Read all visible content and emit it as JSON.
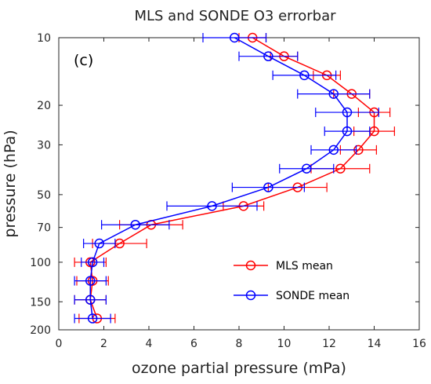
{
  "chart_data": {
    "type": "line",
    "title": "MLS and SONDE O3 errorbar",
    "panel_label": "(c)",
    "xlabel": "ozone partial pressure (mPa)",
    "ylabel": "pressure (hPa)",
    "xlim": [
      0,
      16
    ],
    "ylim": [
      10,
      200
    ],
    "y_scale": "log",
    "y_reversed": true,
    "x_ticks": [
      "0",
      "2",
      "4",
      "6",
      "8",
      "10",
      "12",
      "14",
      "16"
    ],
    "y_ticks": [
      "10",
      "20",
      "30",
      "50",
      "70",
      "100",
      "150",
      "200"
    ],
    "legend_position": "lower-right",
    "series": [
      {
        "name": "MLS mean",
        "color": "#ff0000",
        "points": [
          {
            "y": 10,
            "x": 8.6,
            "xerr": 0.6
          },
          {
            "y": 12.1,
            "x": 10.0,
            "xerr": 0.6
          },
          {
            "y": 14.7,
            "x": 11.9,
            "xerr": 0.6
          },
          {
            "y": 17.8,
            "x": 13.0,
            "xerr": 0.8
          },
          {
            "y": 21.5,
            "x": 14.0,
            "xerr": 0.7
          },
          {
            "y": 26.1,
            "x": 14.0,
            "xerr": 0.9
          },
          {
            "y": 31.6,
            "x": 13.3,
            "xerr": 0.8
          },
          {
            "y": 38.3,
            "x": 12.5,
            "xerr": 1.3
          },
          {
            "y": 46.4,
            "x": 10.6,
            "xerr": 1.3
          },
          {
            "y": 56.2,
            "x": 8.2,
            "xerr": 0.9
          },
          {
            "y": 68.1,
            "x": 4.1,
            "xerr": 1.4
          },
          {
            "y": 82.5,
            "x": 2.7,
            "xerr": 1.2
          },
          {
            "y": 100,
            "x": 1.4,
            "xerr": 0.7
          },
          {
            "y": 121,
            "x": 1.5,
            "xerr": 0.7
          },
          {
            "y": 147,
            "x": 1.4,
            "xerr": 0.7
          },
          {
            "y": 178,
            "x": 1.7,
            "xerr": 0.8
          }
        ]
      },
      {
        "name": "SONDE mean",
        "color": "#0000ff",
        "points": [
          {
            "y": 10,
            "x": 7.8,
            "xerr": 1.4
          },
          {
            "y": 12.1,
            "x": 9.3,
            "xerr": 1.3
          },
          {
            "y": 14.7,
            "x": 10.9,
            "xerr": 1.4
          },
          {
            "y": 17.8,
            "x": 12.2,
            "xerr": 1.6
          },
          {
            "y": 21.5,
            "x": 12.8,
            "xerr": 1.4
          },
          {
            "y": 26.1,
            "x": 12.8,
            "xerr": 1.0
          },
          {
            "y": 31.6,
            "x": 12.2,
            "xerr": 1.0
          },
          {
            "y": 38.3,
            "x": 11.0,
            "xerr": 1.2
          },
          {
            "y": 46.4,
            "x": 9.3,
            "xerr": 1.6
          },
          {
            "y": 56.2,
            "x": 6.8,
            "xerr": 2.0
          },
          {
            "y": 68.1,
            "x": 3.4,
            "xerr": 1.5
          },
          {
            "y": 82.5,
            "x": 1.8,
            "xerr": 0.7
          },
          {
            "y": 100,
            "x": 1.5,
            "xerr": 0.5
          },
          {
            "y": 121,
            "x": 1.4,
            "xerr": 0.7
          },
          {
            "y": 147,
            "x": 1.4,
            "xerr": 0.7
          },
          {
            "y": 178,
            "x": 1.5,
            "xerr": 0.8
          }
        ]
      }
    ]
  }
}
